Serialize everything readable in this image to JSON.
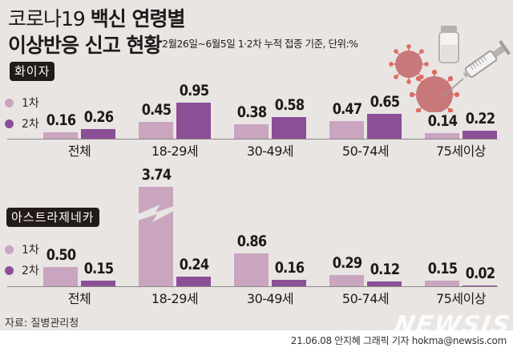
{
  "title": {
    "line1_light": "코로나19 ",
    "line1_bold": "백신 연령별",
    "line2_bold": "이상반응 신고 현황",
    "subtitle": "2월26일~6월5일 1·2차 누적 접종 기준, 단위:%"
  },
  "colors": {
    "dose1": "#c9a5c0",
    "dose2": "#8b4f97",
    "background": "#e8e5e3",
    "tag_bg": "#231a1a"
  },
  "legend": [
    {
      "label": "1차",
      "color": "#c9a5c0"
    },
    {
      "label": "2차",
      "color": "#8b4f97"
    }
  ],
  "sections": {
    "pfizer": {
      "tag": "화이자"
    },
    "az": {
      "tag": "아스트라제네카"
    }
  },
  "illustration": {
    "icons": [
      "vaccine-vial-icon",
      "syringe-icon",
      "coronavirus-icon"
    ]
  },
  "source": "자료: 질병관리청",
  "credit": "21.06.08 안지혜 그래픽 기자 hokma@newsis.com",
  "logo": "NEWSIS",
  "chart_data": [
    {
      "type": "bar",
      "title": "화이자",
      "categories": [
        "전체",
        "18-29세",
        "30-49세",
        "50-74세",
        "75세이상"
      ],
      "series": [
        {
          "name": "1차",
          "values": [
            0.16,
            0.45,
            0.38,
            0.47,
            0.14
          ]
        },
        {
          "name": "2차",
          "values": [
            0.26,
            0.95,
            0.58,
            0.65,
            0.22
          ]
        }
      ],
      "labels1": [
        "0.16",
        "0.45",
        "0.38",
        "0.47",
        "0.14"
      ],
      "labels2": [
        "0.26",
        "0.95",
        "0.58",
        "0.65",
        "0.22"
      ],
      "ylabel": "%",
      "grid": false,
      "legend_position": "left"
    },
    {
      "type": "bar",
      "title": "아스트라제네카",
      "categories": [
        "전체",
        "18-29세",
        "30-49세",
        "50-74세",
        "75세이상"
      ],
      "series": [
        {
          "name": "1차",
          "values": [
            0.5,
            3.74,
            0.86,
            0.29,
            0.15
          ]
        },
        {
          "name": "2차",
          "values": [
            0.15,
            0.24,
            0.16,
            0.12,
            0.02
          ]
        }
      ],
      "labels1": [
        "0.50",
        "3.74",
        "0.86",
        "0.29",
        "0.15"
      ],
      "labels2": [
        "0.15",
        "0.24",
        "0.16",
        "0.12",
        "0.02"
      ],
      "ylabel": "%",
      "grid": false,
      "legend_position": "left",
      "annotations": [
        "3.74 bar shown with axis break"
      ]
    }
  ]
}
